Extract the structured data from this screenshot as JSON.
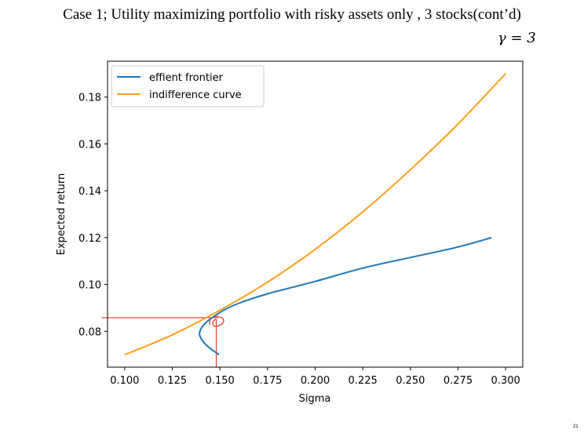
{
  "slide": {
    "title": "Case 1; Utility maximizing portfolio with risky assets only , 3 stocks(cont’d)",
    "gamma_label": "γ = 3",
    "page_number": "21"
  },
  "chart_data": {
    "type": "line",
    "title": "",
    "xlabel": "Sigma",
    "ylabel": "Expected return",
    "xlim": [
      0.091,
      0.309
    ],
    "ylim": [
      0.0647,
      0.1953
    ],
    "xticks": [
      0.1,
      0.125,
      0.15,
      0.175,
      0.2,
      0.225,
      0.25,
      0.275,
      0.3
    ],
    "xtick_labels": [
      "0.100",
      "0.125",
      "0.150",
      "0.175",
      "0.200",
      "0.225",
      "0.250",
      "0.275",
      "0.300"
    ],
    "yticks": [
      0.08,
      0.1,
      0.12,
      0.14,
      0.16,
      0.18
    ],
    "ytick_labels": [
      "0.08",
      "0.10",
      "0.12",
      "0.14",
      "0.16",
      "0.18"
    ],
    "grid": false,
    "legend_placement": "top-left",
    "series": [
      {
        "name": "effient frontier",
        "color": "#1f77b4",
        "points": [
          [
            0.1495,
            0.07
          ],
          [
            0.143,
            0.074
          ],
          [
            0.1395,
            0.078
          ],
          [
            0.14,
            0.081
          ],
          [
            0.143,
            0.084
          ],
          [
            0.148,
            0.087
          ],
          [
            0.152,
            0.089
          ],
          [
            0.16,
            0.092
          ],
          [
            0.175,
            0.096
          ],
          [
            0.2,
            0.1013
          ],
          [
            0.225,
            0.107
          ],
          [
            0.25,
            0.1115
          ],
          [
            0.275,
            0.116
          ],
          [
            0.2925,
            0.12
          ]
        ]
      },
      {
        "name": "indifference curve",
        "color": "#ff9f1c",
        "points": [
          [
            0.1,
            0.07
          ],
          [
            0.125,
            0.0785
          ],
          [
            0.15,
            0.089
          ],
          [
            0.175,
            0.101
          ],
          [
            0.2,
            0.115
          ],
          [
            0.225,
            0.131
          ],
          [
            0.25,
            0.149
          ],
          [
            0.275,
            0.1685
          ],
          [
            0.3,
            0.19
          ]
        ]
      }
    ],
    "annotations": {
      "color": "#e23c2a",
      "tangency_point": [
        0.1485,
        0.0885
      ],
      "horizontal_line_x_start": 0.088,
      "vertical_line_y_end": 0.0647
    }
  }
}
